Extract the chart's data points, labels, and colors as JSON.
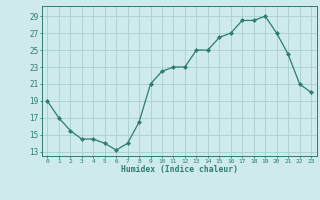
{
  "xlabel": "Humidex (Indice chaleur)",
  "x": [
    0,
    1,
    2,
    3,
    4,
    5,
    6,
    7,
    8,
    9,
    10,
    11,
    12,
    13,
    14,
    15,
    16,
    17,
    18,
    19,
    20,
    21,
    22,
    23
  ],
  "y": [
    19,
    17,
    15.5,
    14.5,
    14.5,
    14,
    13.2,
    14,
    16.5,
    21,
    22.5,
    23,
    23,
    25,
    25,
    26.5,
    27,
    28.5,
    28.5,
    29,
    27,
    24.5,
    21,
    20
  ],
  "line_color": "#2d7d6d",
  "marker": "D",
  "marker_size": 2.0,
  "bg_color": "#ceeaea",
  "grid_color": "#aacece",
  "yticks": [
    13,
    15,
    17,
    19,
    21,
    23,
    25,
    27,
    29
  ],
  "ylim": [
    12.5,
    30.2
  ],
  "xlim": [
    -0.5,
    23.5
  ],
  "figsize": [
    3.2,
    2.0
  ],
  "dpi": 100
}
